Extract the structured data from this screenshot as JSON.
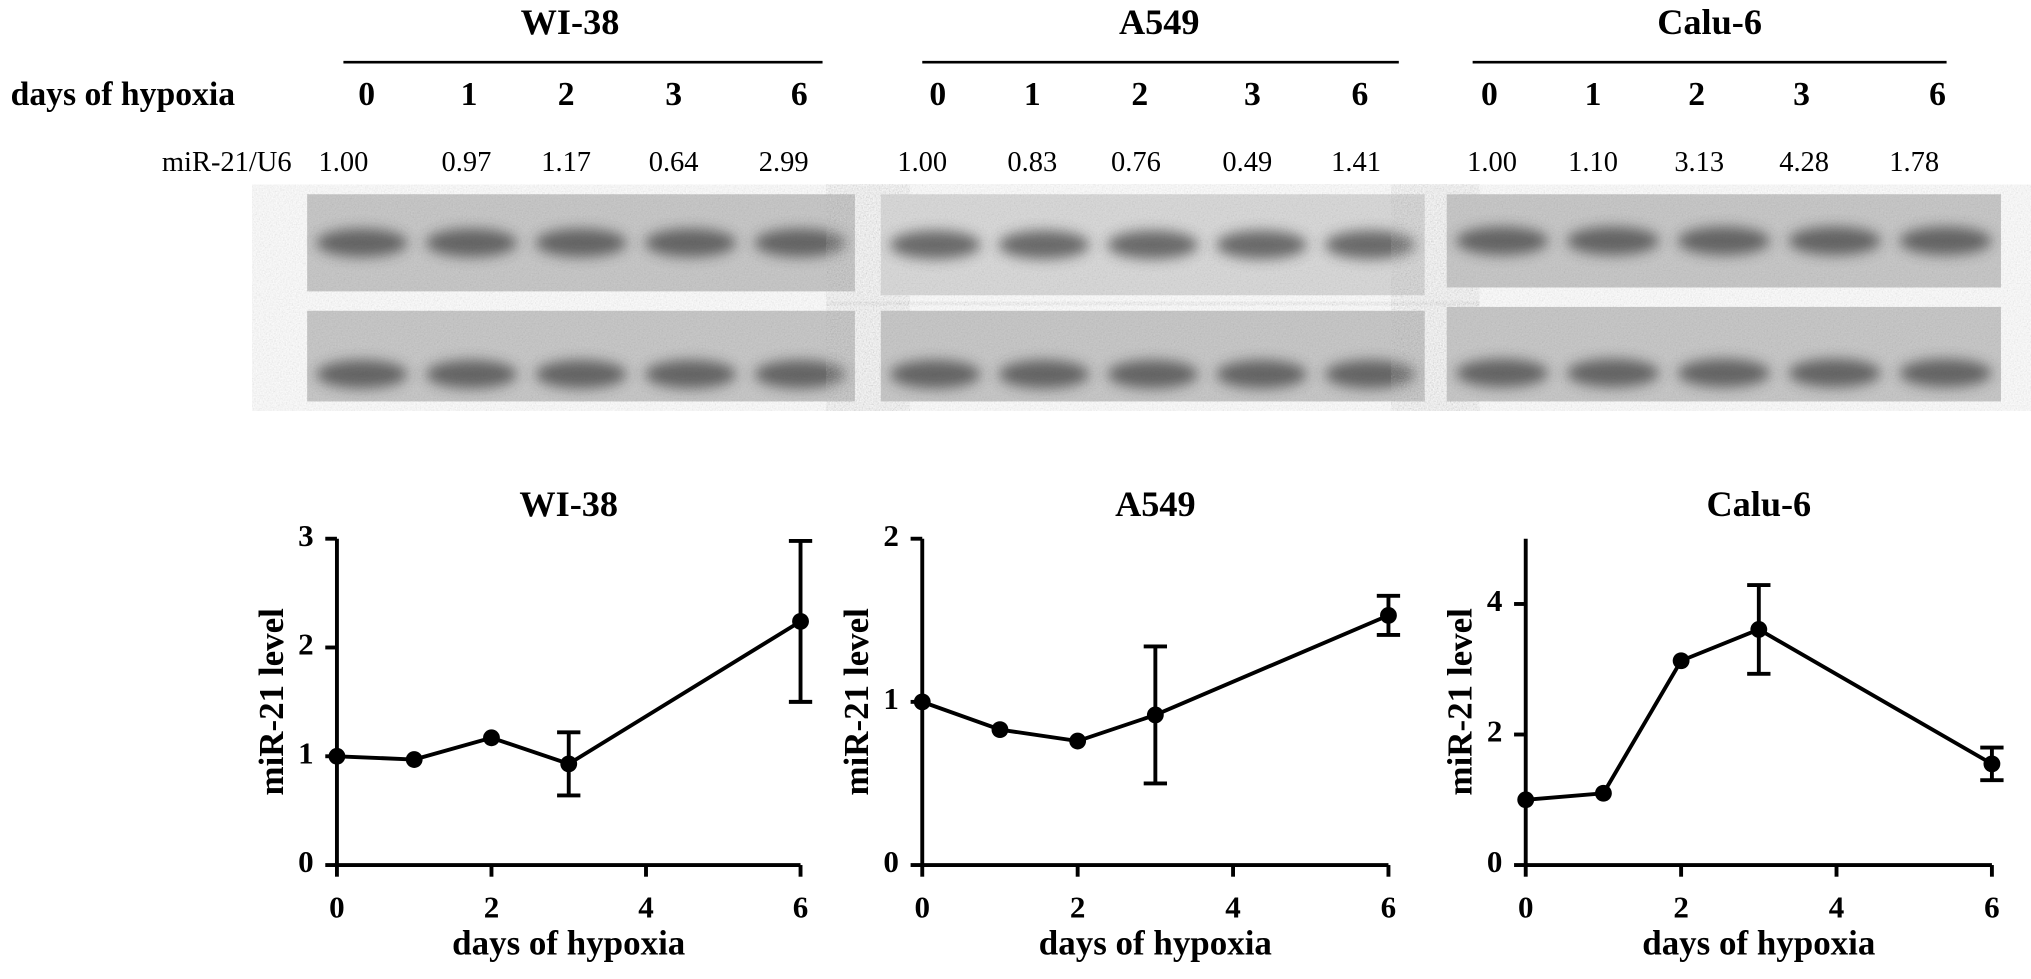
{
  "blot_panel": {
    "row_label": "days of hypoxia",
    "ratio_label": "miR-21/U6",
    "groups": [
      {
        "name": "WI-38",
        "days": [
          0,
          1,
          2,
          3,
          6
        ],
        "ratios": [
          "1.00",
          "0.97",
          "1.17",
          "0.64",
          "2.99"
        ]
      },
      {
        "name": "A549",
        "days": [
          0,
          1,
          2,
          3,
          6
        ],
        "ratios": [
          "1.00",
          "0.83",
          "0.76",
          "0.49",
          "1.41"
        ]
      },
      {
        "name": "Calu-6",
        "days": [
          0,
          1,
          2,
          3,
          6
        ],
        "ratios": [
          "1.00",
          "1.10",
          "3.13",
          "4.28",
          "1.78"
        ]
      }
    ]
  },
  "chart_data": [
    {
      "type": "line",
      "title": "WI-38",
      "xlabel": "days of hypoxia",
      "ylabel": "miR-21 level",
      "x": [
        0,
        1,
        2,
        3,
        6
      ],
      "values": [
        1.0,
        0.97,
        1.17,
        0.93,
        2.24
      ],
      "errors": [
        null,
        null,
        null,
        0.29,
        0.74
      ],
      "color": "#000000",
      "xlim": [
        0,
        6
      ],
      "xticks": [
        0,
        2,
        4,
        6
      ],
      "ylim": [
        0,
        3
      ],
      "yticks": [
        0,
        1,
        2,
        3
      ]
    },
    {
      "type": "line",
      "title": "A549",
      "xlabel": "days of hypoxia",
      "ylabel": "miR-21 level",
      "x": [
        0,
        1,
        2,
        3,
        6
      ],
      "values": [
        1.0,
        0.83,
        0.76,
        0.92,
        1.53
      ],
      "errors": [
        null,
        null,
        null,
        0.42,
        0.12
      ],
      "color": "#000000",
      "xlim": [
        0,
        6
      ],
      "xticks": [
        0,
        2,
        4,
        6
      ],
      "ylim": [
        0,
        2
      ],
      "yticks": [
        0,
        1,
        2
      ]
    },
    {
      "type": "line",
      "title": "Calu-6",
      "xlabel": "days of hypoxia",
      "ylabel": "miR-21 level",
      "x": [
        0,
        1,
        2,
        3,
        6
      ],
      "values": [
        1.0,
        1.1,
        3.13,
        3.61,
        1.55
      ],
      "errors": [
        null,
        null,
        null,
        0.68,
        0.25
      ],
      "color": "#000000",
      "xlim": [
        0,
        6
      ],
      "xticks": [
        0,
        2,
        4,
        6
      ],
      "ylim": [
        0,
        5
      ],
      "yticks": [
        0,
        2,
        4
      ]
    }
  ]
}
